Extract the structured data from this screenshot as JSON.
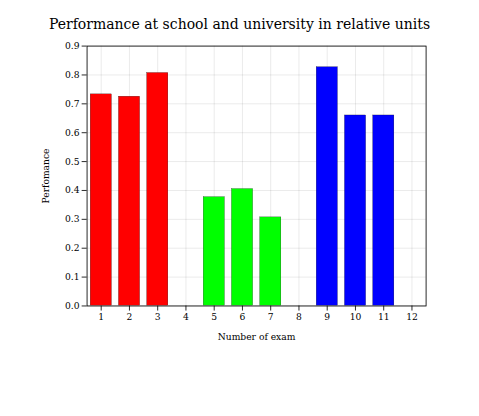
{
  "chart_data": {
    "type": "bar",
    "title": "Performance at school and university in relative units",
    "xlabel": "Number of exam",
    "ylabel": "Perfomance",
    "x": [
      1,
      2,
      3,
      5,
      6,
      7,
      9,
      10,
      11
    ],
    "values": [
      0.733,
      0.725,
      0.807,
      0.377,
      0.405,
      0.307,
      0.827,
      0.66,
      0.66
    ],
    "colors": [
      "#ff0000",
      "#ff0000",
      "#ff0000",
      "#00ff00",
      "#00ff00",
      "#00ff00",
      "#0000ff",
      "#0000ff",
      "#0000ff"
    ],
    "xlim": [
      0.5,
      12.5
    ],
    "ylim": [
      0,
      0.9
    ],
    "xticks": [
      1,
      2,
      3,
      4,
      5,
      6,
      7,
      8,
      9,
      10,
      11,
      12
    ],
    "yticks": [
      {
        "value": 0,
        "label": "0.0"
      },
      0.1,
      0.2,
      0.3,
      0.4,
      0.5,
      0.6,
      0.7,
      0.8,
      0.9
    ],
    "grid": true
  }
}
